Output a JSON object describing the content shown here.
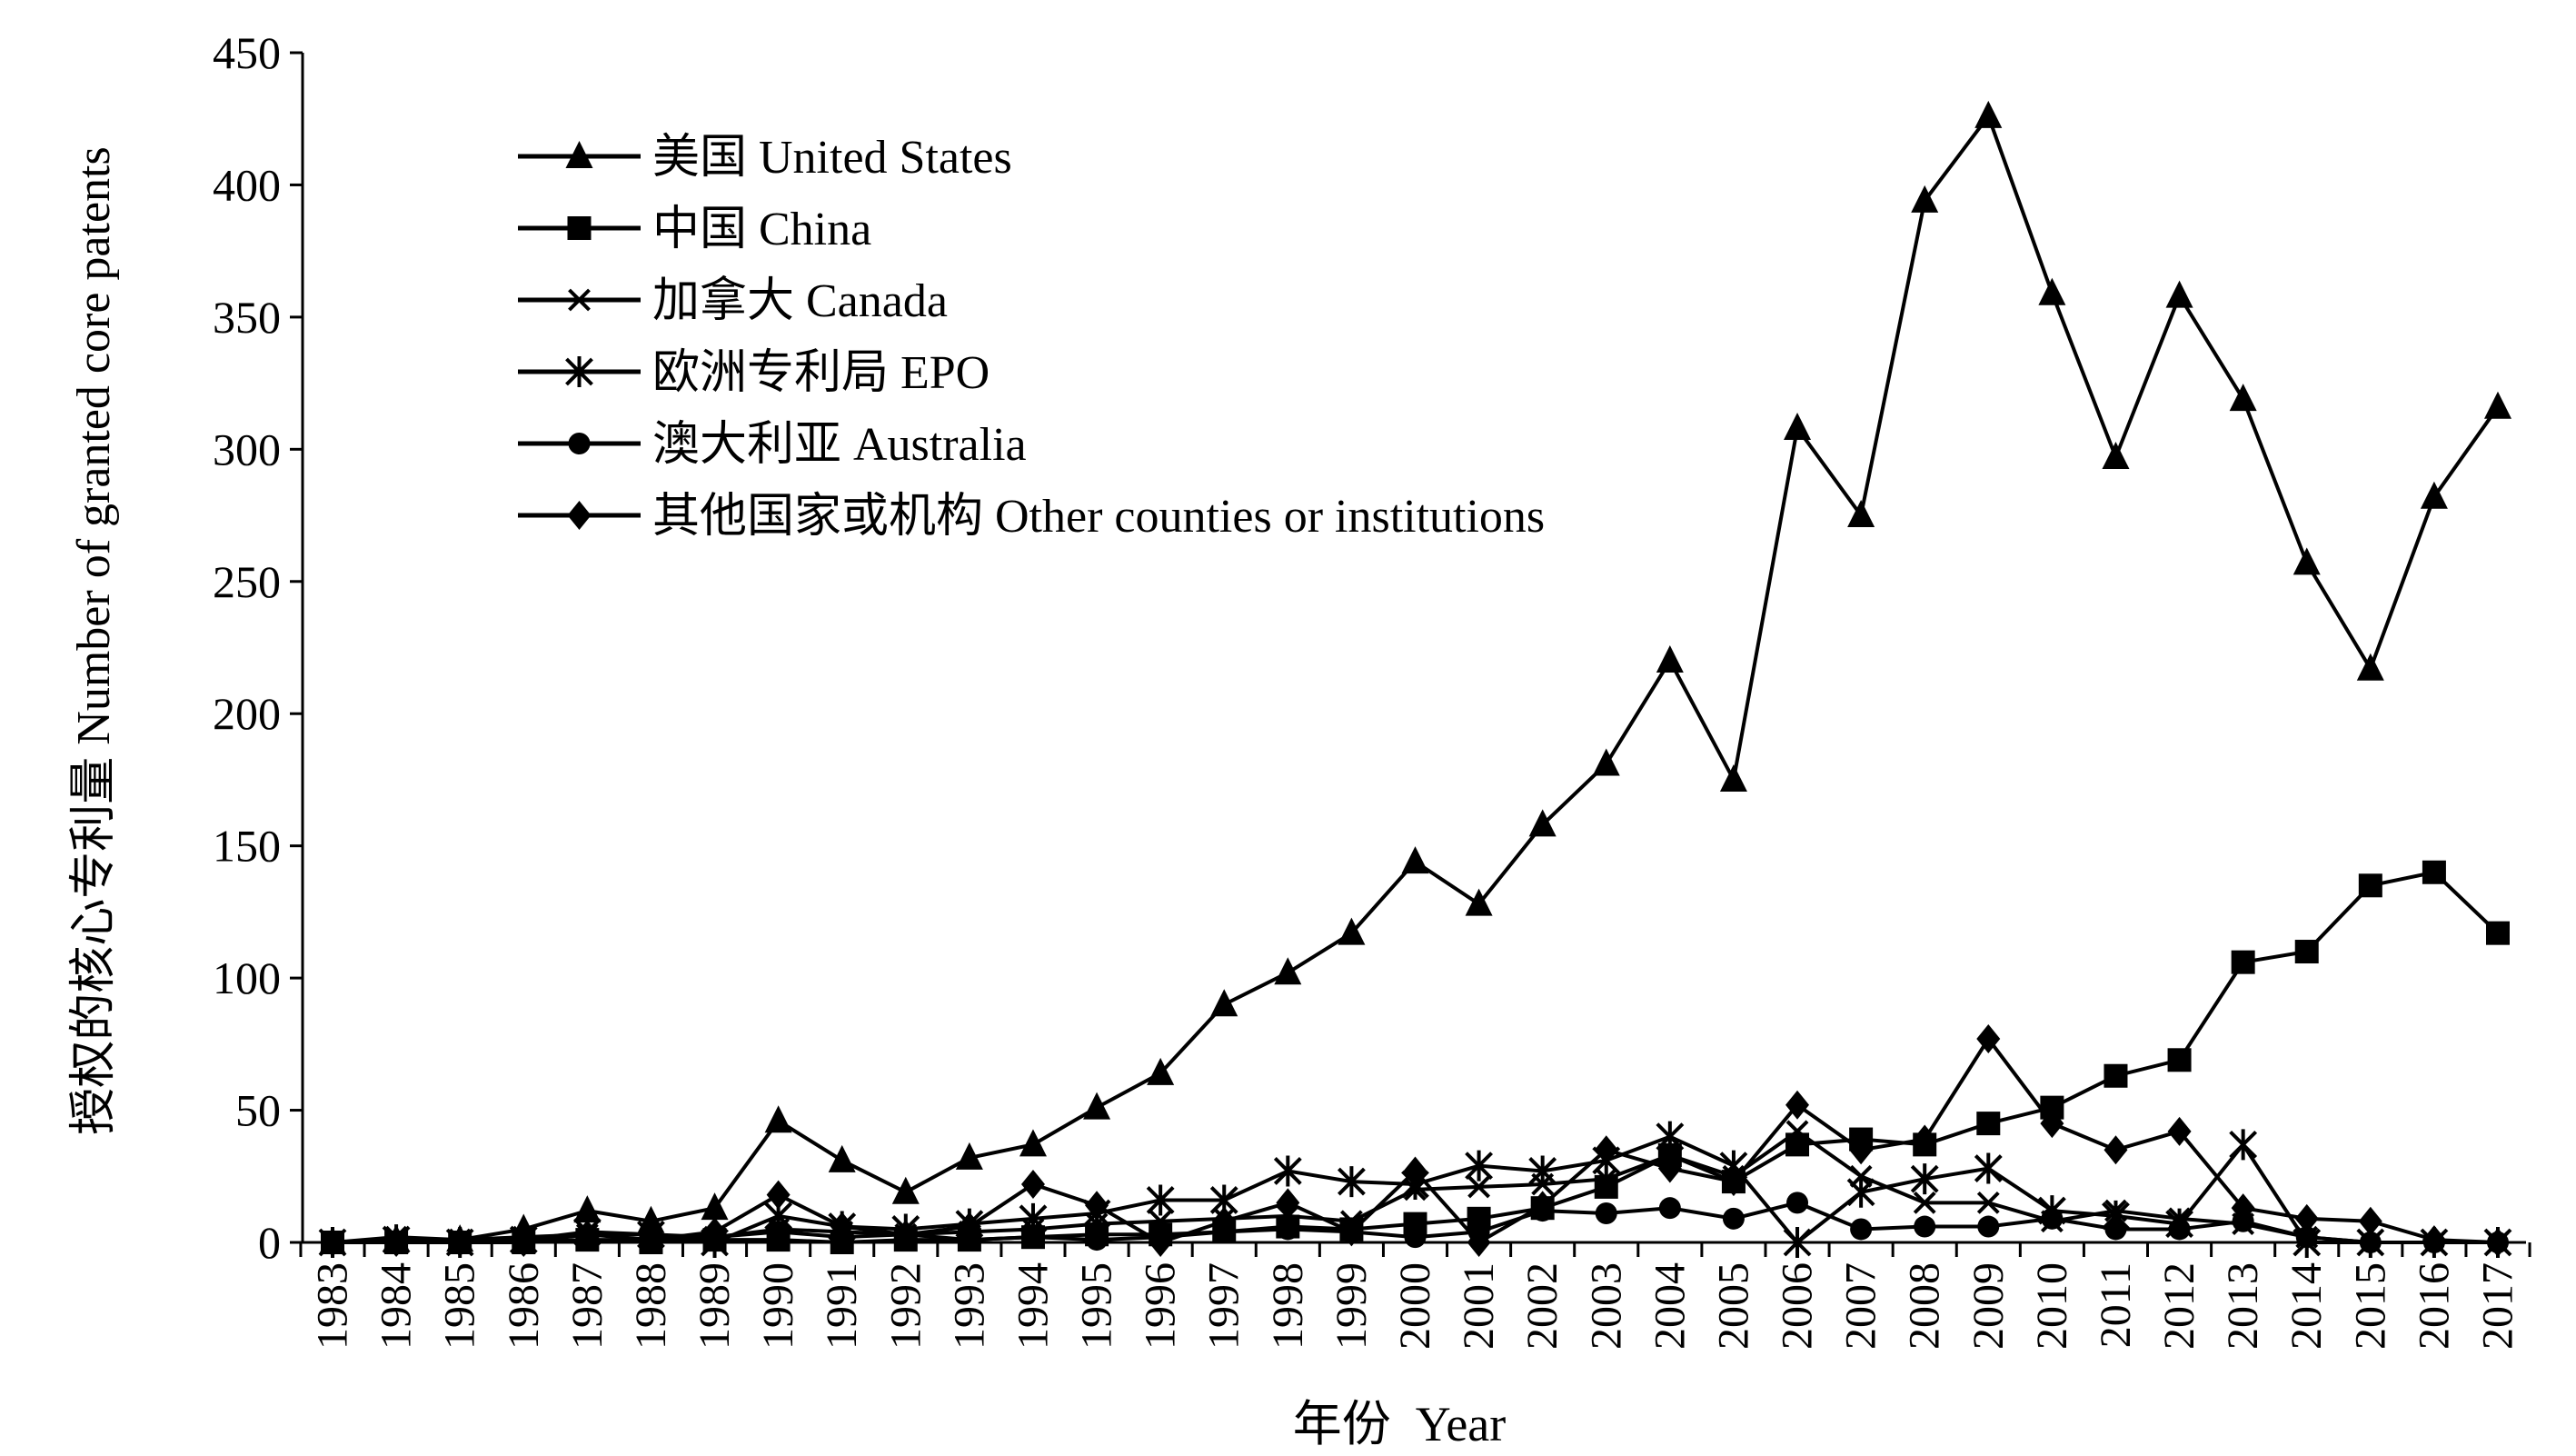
{
  "chart_data": {
    "type": "line",
    "title": "",
    "xlabel": "年份  Year",
    "ylabel": "授权的核心专利量 Number of granted core patents",
    "ylim": [
      0,
      450
    ],
    "yticks": [
      0,
      50,
      100,
      150,
      200,
      250,
      300,
      350,
      400,
      450
    ],
    "grid": false,
    "legend_position": "top-left",
    "categories": [
      "1983",
      "1984",
      "1985",
      "1986",
      "1987",
      "1988",
      "1989",
      "1990",
      "1991",
      "1992",
      "1993",
      "1994",
      "1995",
      "1996",
      "1997",
      "1998",
      "1999",
      "2000",
      "2001",
      "2002",
      "2003",
      "2004",
      "2005",
      "2006",
      "2007",
      "2008",
      "2009",
      "2010",
      "2011",
      "2012",
      "2013",
      "2014",
      "2015",
      "2016",
      "2017"
    ],
    "series": [
      {
        "name": "美国 United States",
        "marker": "triangle",
        "color": "#000000",
        "values": [
          0,
          1,
          1,
          5,
          12,
          8,
          13,
          46,
          31,
          19,
          32,
          37,
          51,
          64,
          90,
          102,
          117,
          144,
          128,
          158,
          181,
          220,
          175,
          308,
          275,
          394,
          426,
          359,
          297,
          358,
          319,
          257,
          217,
          282,
          316
        ]
      },
      {
        "name": "中国 China",
        "marker": "square",
        "color": "#000000",
        "values": [
          0,
          0,
          0,
          0,
          1,
          0,
          1,
          1,
          0,
          1,
          1,
          2,
          3,
          3,
          4,
          6,
          5,
          7,
          9,
          13,
          21,
          33,
          23,
          37,
          39,
          37,
          45,
          51,
          63,
          69,
          106,
          110,
          135,
          140,
          117
        ]
      },
      {
        "name": "加拿大 Canada",
        "marker": "x",
        "color": "#000000",
        "values": [
          0,
          2,
          1,
          2,
          3,
          3,
          2,
          5,
          4,
          3,
          4,
          5,
          7,
          8,
          9,
          10,
          8,
          20,
          21,
          22,
          24,
          33,
          25,
          42,
          25,
          15,
          15,
          8,
          12,
          9,
          7,
          2,
          0,
          0,
          0
        ]
      },
      {
        "name": "欧洲专利局 EPO",
        "marker": "asterisk",
        "color": "#000000",
        "values": [
          0,
          1,
          0,
          1,
          4,
          3,
          0,
          10,
          6,
          5,
          7,
          9,
          11,
          16,
          16,
          27,
          23,
          22,
          29,
          27,
          31,
          40,
          29,
          0,
          19,
          24,
          28,
          12,
          10,
          7,
          37,
          0,
          0,
          0,
          0
        ]
      },
      {
        "name": "澳大利亚 Australia",
        "marker": "circle",
        "color": "#000000",
        "values": [
          0,
          0,
          0,
          0,
          1,
          1,
          2,
          4,
          2,
          3,
          1,
          2,
          1,
          2,
          4,
          5,
          4,
          2,
          4,
          12,
          11,
          13,
          9,
          15,
          5,
          6,
          6,
          9,
          5,
          5,
          8,
          2,
          0,
          0,
          0
        ]
      },
      {
        "name": "其他国家或机构 Other counties or institutions",
        "marker": "diamond",
        "color": "#000000",
        "values": [
          0,
          0,
          0,
          0,
          3,
          1,
          4,
          18,
          6,
          3,
          6,
          22,
          14,
          0,
          8,
          15,
          4,
          27,
          0,
          14,
          35,
          28,
          23,
          52,
          35,
          39,
          77,
          45,
          35,
          42,
          13,
          9,
          8,
          1,
          0
        ]
      }
    ]
  }
}
